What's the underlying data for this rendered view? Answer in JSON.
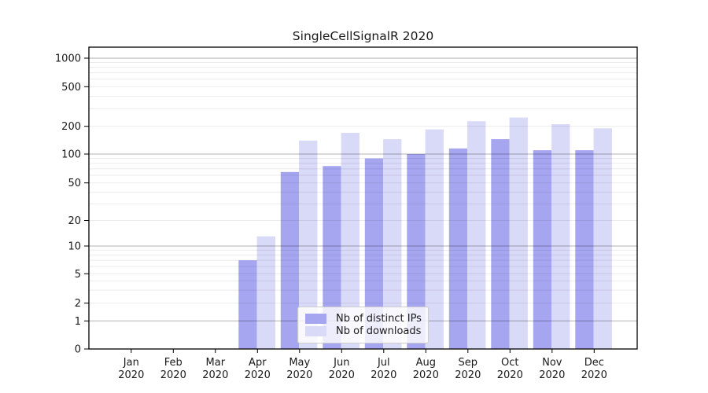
{
  "title": "SingleCellSignalR 2020",
  "colors": {
    "distinct_ips": "#a5a5f0",
    "downloads": "#d9d9f8",
    "grid_major": "rgba(0,0,0,0.30)",
    "grid_minor": "rgba(0,0,0,0.08)",
    "axis": "#000000",
    "text": "#1a1a1a",
    "legend_border": "#cccccc"
  },
  "legend": {
    "items": [
      {
        "label": "Nb of distinct IPs",
        "color": "#a5a5f0"
      },
      {
        "label": "Nb of downloads",
        "color": "#d9d9f8"
      }
    ]
  },
  "chart_data": {
    "type": "bar",
    "title": "SingleCellSignalR 2020",
    "categories": [
      "Jan 2020",
      "Feb 2020",
      "Mar 2020",
      "Apr 2020",
      "May 2020",
      "Jun 2020",
      "Jul 2020",
      "Aug 2020",
      "Sep 2020",
      "Oct 2020",
      "Nov 2020",
      "Dec 2020"
    ],
    "series": [
      {
        "name": "Nb of distinct IPs",
        "color": "#a5a5f0",
        "values": [
          0,
          0,
          0,
          7,
          65,
          75,
          90,
          100,
          115,
          145,
          110,
          110
        ]
      },
      {
        "name": "Nb of downloads",
        "color": "#d9d9f8",
        "values": [
          0,
          0,
          0,
          13,
          140,
          170,
          145,
          185,
          225,
          245,
          210,
          190
        ]
      }
    ],
    "xlabel": "",
    "ylabel": "",
    "yscale": "symlog",
    "yticks": [
      0,
      1,
      2,
      5,
      10,
      20,
      50,
      100,
      200,
      500,
      1000
    ],
    "ylim": [
      0,
      1300
    ],
    "grid": true,
    "grid_major_at": [
      1,
      10,
      100,
      1000
    ],
    "legend_position": "inside lower-center"
  }
}
